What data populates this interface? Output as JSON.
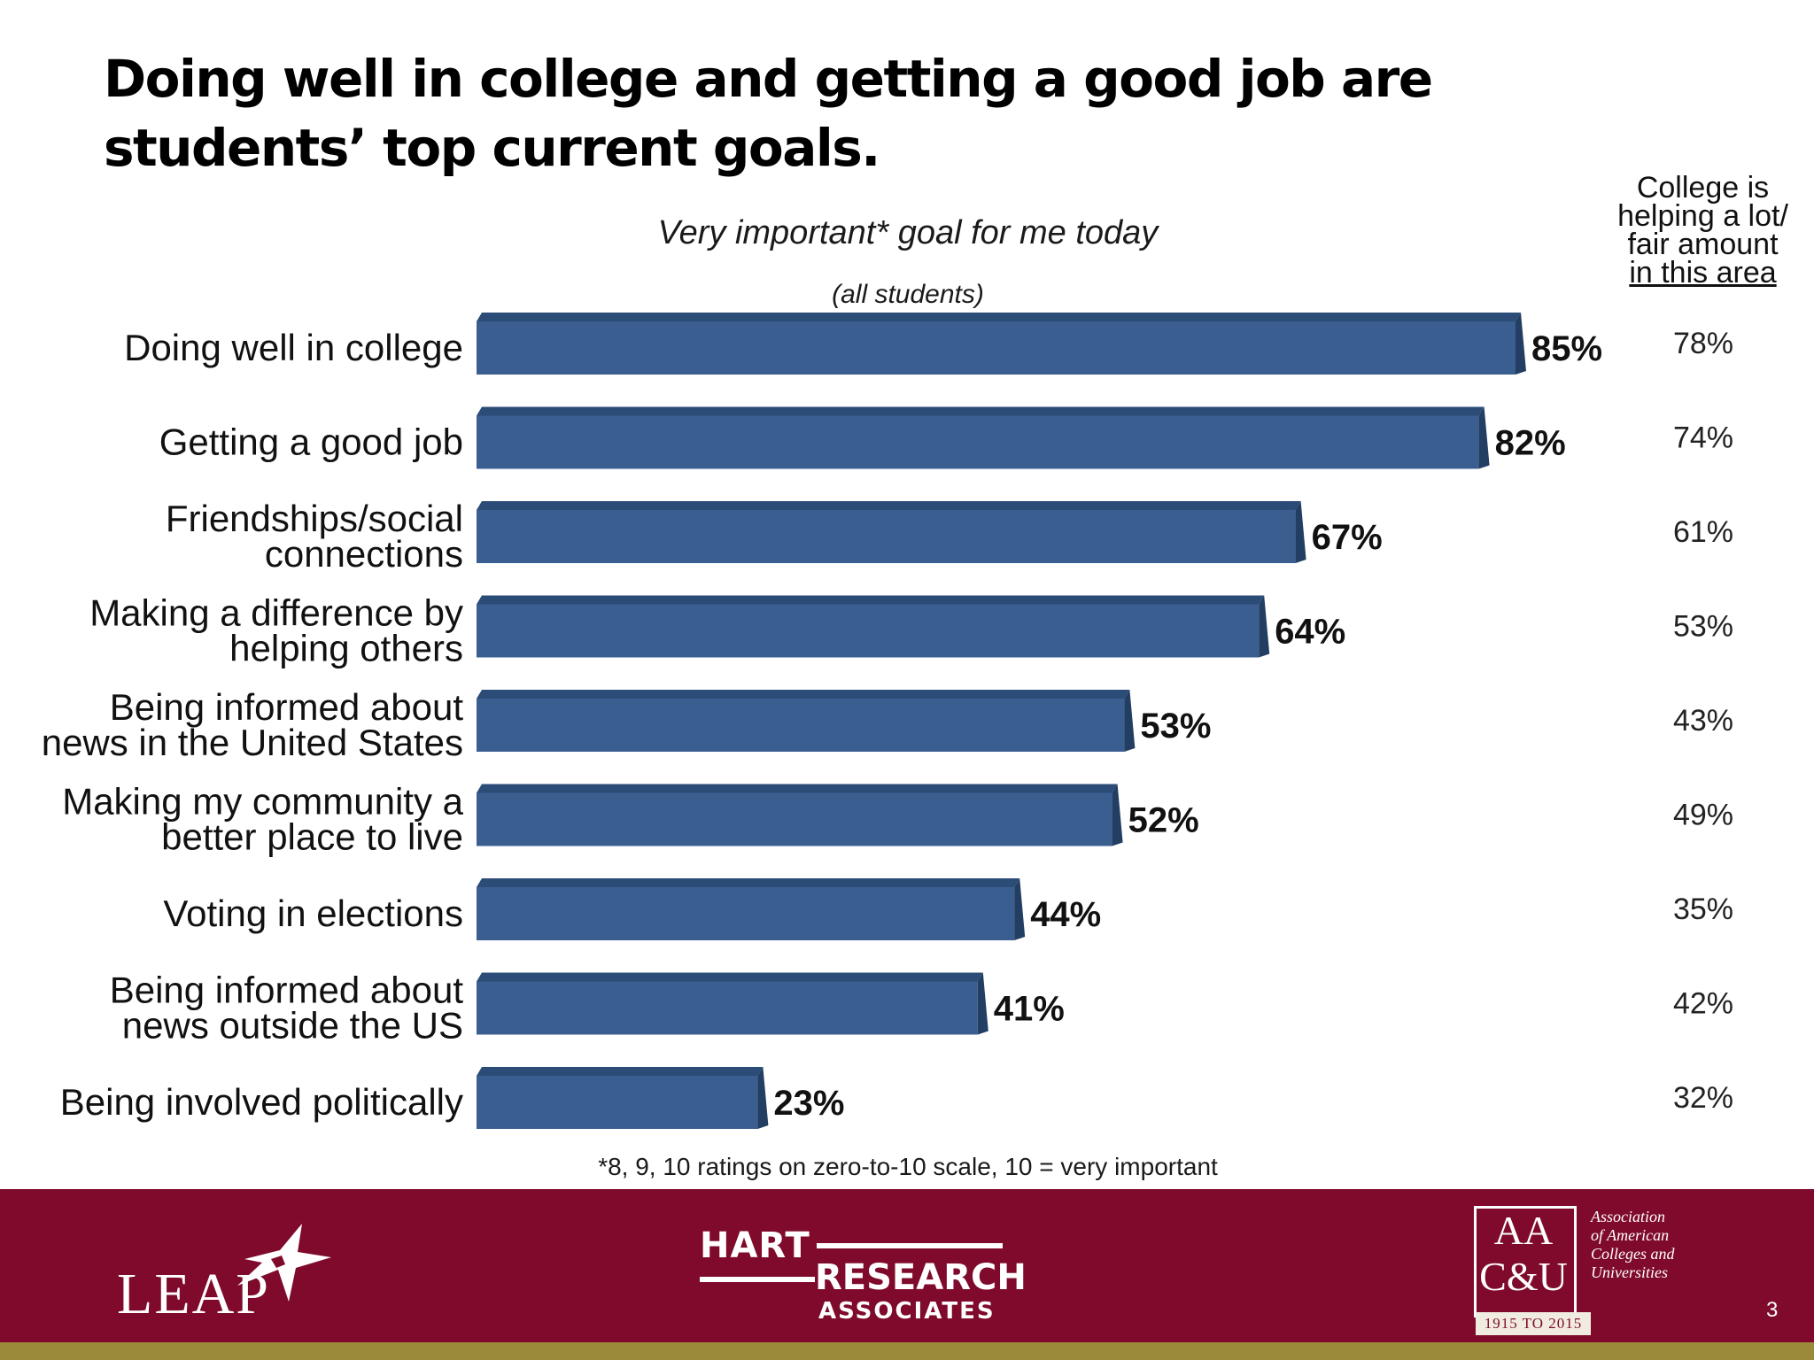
{
  "slide": {
    "title": "Doing well in college and getting a good job are students’ top current goals.",
    "page_number": "3",
    "footnote": "*8, 9, 10 ratings on zero-to-10 scale, 10 = very important"
  },
  "chart_data": {
    "type": "bar",
    "orientation": "horizontal",
    "title": "Very important* goal for me today",
    "subtitle": "(all students)",
    "categories": [
      "Doing well in college",
      "Getting a good job",
      "Friendships/social connections",
      "Making a difference by helping others",
      "Being informed about news in the United States",
      "Making my community a better place to live",
      "Voting in elections",
      "Being informed about news outside the US",
      "Being involved politically"
    ],
    "category_lines": [
      [
        "Doing well in college"
      ],
      [
        "Getting a good job"
      ],
      [
        "Friendships/social",
        "connections"
      ],
      [
        "Making a difference by",
        "helping others"
      ],
      [
        "Being informed about",
        "news in the United States"
      ],
      [
        "Making my community a",
        "better place to live"
      ],
      [
        "Voting in elections"
      ],
      [
        "Being informed about",
        "news outside the US"
      ],
      [
        "Being involved politically"
      ]
    ],
    "values": [
      85,
      82,
      67,
      64,
      53,
      52,
      44,
      41,
      23
    ],
    "value_labels": [
      "85%",
      "82%",
      "67%",
      "64%",
      "53%",
      "52%",
      "44%",
      "41%",
      "23%"
    ],
    "xlim": [
      0,
      100
    ],
    "bar_color": "#3b5e91",
    "side_column": {
      "header_lines": [
        "College is",
        "helping a lot/",
        "fair amount",
        "in this area"
      ],
      "values": [
        78,
        74,
        61,
        53,
        43,
        49,
        35,
        42,
        32
      ],
      "labels": [
        "78%",
        "74%",
        "61%",
        "53%",
        "43%",
        "49%",
        "35%",
        "42%",
        "32%"
      ]
    }
  },
  "footer": {
    "leap_logo": "LEAP",
    "hart_line1": "HART",
    "hart_line2": "RESEARCH",
    "hart_line3": "ASSOCIATES",
    "aacu_letters_top": "AA",
    "aacu_letters_bottom": "C&U",
    "aacu_name": [
      "Association",
      "of American",
      "Colleges and",
      "Universities"
    ],
    "aacu_years": "1915 TO 2015",
    "footer_color": "#7f0a2b",
    "strip_color": "#9b8a3a"
  }
}
